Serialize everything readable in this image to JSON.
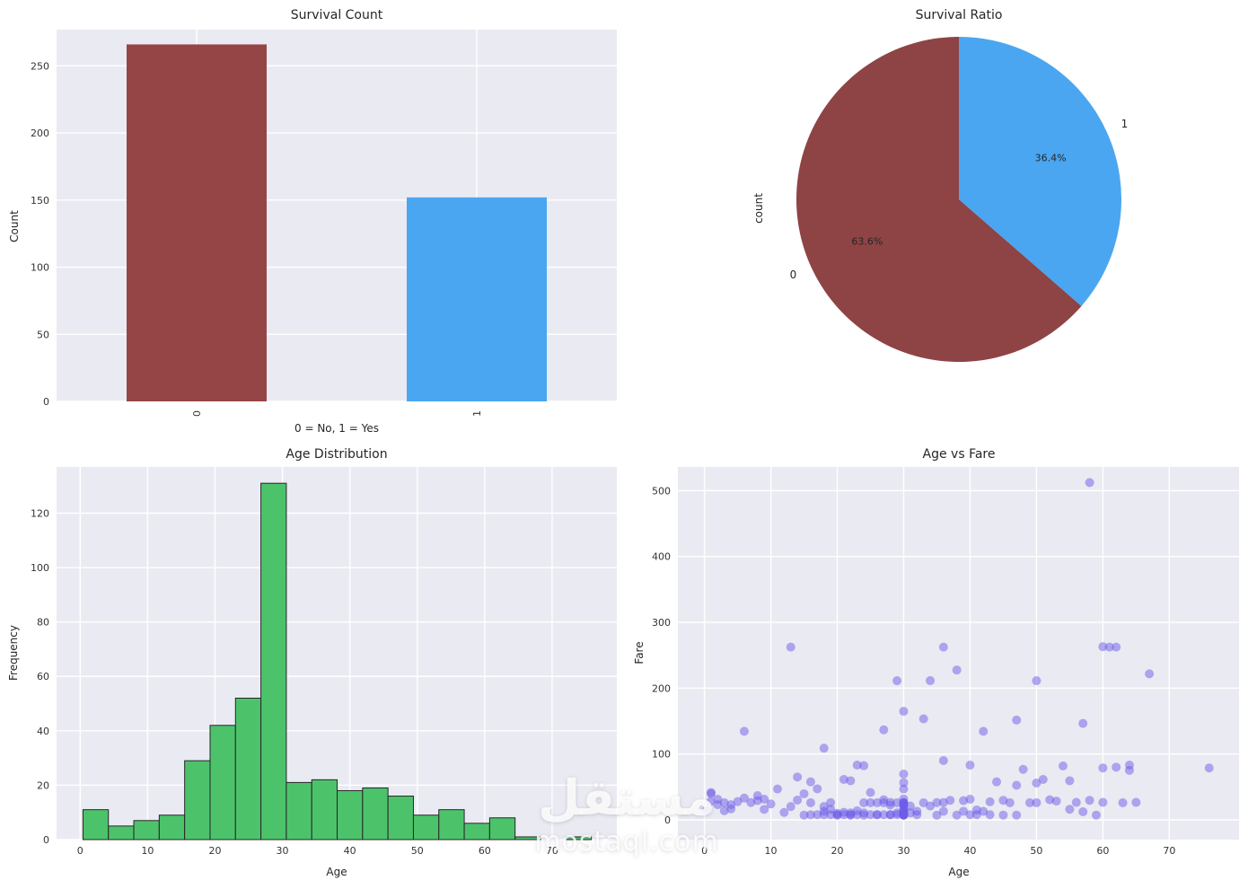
{
  "watermark": {
    "arabic": "مستقل",
    "domain": "mostaql.com"
  },
  "chart_data": [
    {
      "id": "survival_count",
      "type": "bar",
      "title": "Survival Count",
      "xlabel": "0 = No, 1 = Yes",
      "ylabel": "Count",
      "categories": [
        "0",
        "1"
      ],
      "values": [
        266,
        152
      ],
      "bar_colors": [
        "#964547",
        "#4aa6f0"
      ],
      "ylim": [
        0,
        277
      ],
      "yticks": [
        0,
        50,
        100,
        150,
        200,
        250
      ],
      "panel_background": "#eaeaf2",
      "grid_color": "#ffffff"
    },
    {
      "id": "survival_ratio",
      "type": "pie",
      "title": "Survival Ratio",
      "ylabel": "count",
      "labels": [
        "0",
        "1"
      ],
      "values": [
        63.6,
        36.4
      ],
      "pct_labels": [
        "63.6%",
        "36.4%"
      ],
      "colors": [
        "#8e4345",
        "#4aa6f0"
      ],
      "start_angle": 90,
      "direction": "counterclockwise"
    },
    {
      "id": "age_distribution",
      "type": "histogram",
      "title": "Age Distribution",
      "xlabel": "Age",
      "ylabel": "Frequency",
      "bin_start": 0.42,
      "bin_width": 3.77,
      "counts": [
        11,
        5,
        7,
        9,
        29,
        42,
        52,
        131,
        21,
        22,
        18,
        19,
        16,
        9,
        11,
        6,
        8,
        1,
        0,
        1
      ],
      "bar_color": "#4cc36b",
      "edge_color": "#262626",
      "xticks": [
        0,
        10,
        20,
        30,
        40,
        50,
        60,
        70
      ],
      "yticks": [
        0,
        20,
        40,
        60,
        80,
        100,
        120
      ],
      "xlim": [
        -3.5,
        79.6
      ],
      "ylim": [
        0,
        137
      ],
      "panel_background": "#eaeaf2",
      "grid_color": "#ffffff"
    },
    {
      "id": "age_vs_fare",
      "type": "scatter",
      "title": "Age vs Fare",
      "xlabel": "Age",
      "ylabel": "Fare",
      "point_color": "#6c5ce7",
      "point_opacity": 0.5,
      "xticks": [
        0,
        10,
        20,
        30,
        40,
        50,
        60,
        70
      ],
      "yticks": [
        0,
        100,
        200,
        300,
        400,
        500
      ],
      "xlim": [
        -4,
        80.5
      ],
      "ylim": [
        -30,
        536
      ],
      "panel_background": "#eaeaf2",
      "grid_color": "#ffffff",
      "points": [
        [
          0.33,
          14.4
        ],
        [
          0.92,
          27.75
        ],
        [
          1,
          39.69
        ],
        [
          1,
          41.58
        ],
        [
          2,
          23.0
        ],
        [
          2,
          31.27
        ],
        [
          3,
          26.0
        ],
        [
          3,
          13.78
        ],
        [
          4,
          16.7
        ],
        [
          4,
          23.0
        ],
        [
          5,
          27.75
        ],
        [
          6,
          134.5
        ],
        [
          6,
          33.0
        ],
        [
          7,
          26.25
        ],
        [
          8,
          36.75
        ],
        [
          8,
          29.13
        ],
        [
          9,
          31.39
        ],
        [
          9,
          15.9
        ],
        [
          10,
          24.15
        ],
        [
          11,
          46.9
        ],
        [
          12,
          11.24
        ],
        [
          13,
          262.38
        ],
        [
          13,
          20.25
        ],
        [
          14,
          30.07
        ],
        [
          14,
          65.0
        ],
        [
          15,
          39.63
        ],
        [
          15,
          7.23
        ],
        [
          16,
          26.0
        ],
        [
          16,
          7.75
        ],
        [
          16,
          57.75
        ],
        [
          17,
          7.9
        ],
        [
          17,
          47.1
        ],
        [
          18,
          108.9
        ],
        [
          18,
          13.0
        ],
        [
          18,
          7.78
        ],
        [
          18,
          20.21
        ],
        [
          19,
          7.85
        ],
        [
          19,
          26.28
        ],
        [
          19,
          16.1
        ],
        [
          20,
          7.23
        ],
        [
          20,
          9.85
        ],
        [
          20,
          7.93
        ],
        [
          21,
          7.8
        ],
        [
          21,
          61.38
        ],
        [
          21,
          11.5
        ],
        [
          22,
          7.25
        ],
        [
          22,
          59.4
        ],
        [
          22,
          7.9
        ],
        [
          22,
          10.5
        ],
        [
          23,
          13.79
        ],
        [
          23,
          83.16
        ],
        [
          23,
          7.85
        ],
        [
          24,
          7.05
        ],
        [
          24,
          82.27
        ],
        [
          24,
          26.0
        ],
        [
          24,
          10.5
        ],
        [
          25,
          7.9
        ],
        [
          25,
          26.0
        ],
        [
          25,
          41.58
        ],
        [
          26,
          7.85
        ],
        [
          26,
          26.0
        ],
        [
          26,
          7.9
        ],
        [
          27,
          136.78
        ],
        [
          27,
          26.0
        ],
        [
          27,
          7.88
        ],
        [
          27,
          30.5
        ],
        [
          28,
          7.78
        ],
        [
          28,
          26.55
        ],
        [
          28,
          22.53
        ],
        [
          28,
          7.9
        ],
        [
          29,
          211.34
        ],
        [
          29,
          7.93
        ],
        [
          29,
          26.0
        ],
        [
          29,
          10.5
        ],
        [
          30,
          164.87
        ],
        [
          30,
          7.75
        ],
        [
          30,
          26.0
        ],
        [
          30,
          12.35
        ],
        [
          30,
          7.63
        ],
        [
          30,
          21.0
        ],
        [
          30,
          8.66
        ],
        [
          30,
          13.0
        ],
        [
          30,
          7.9
        ],
        [
          30,
          26.25
        ],
        [
          30,
          15.58
        ],
        [
          30,
          23.45
        ],
        [
          30,
          31.68
        ],
        [
          30,
          7.23
        ],
        [
          30,
          14.46
        ],
        [
          30,
          8.05
        ],
        [
          30,
          56.5
        ],
        [
          30,
          69.55
        ],
        [
          30,
          46.9
        ],
        [
          30,
          25.7
        ],
        [
          30,
          22.36
        ],
        [
          30,
          7.25
        ],
        [
          31,
          10.5
        ],
        [
          31,
          21.0
        ],
        [
          32,
          13.0
        ],
        [
          32,
          7.93
        ],
        [
          33,
          26.0
        ],
        [
          33,
          153.46
        ],
        [
          34,
          21.0
        ],
        [
          34,
          211.5
        ],
        [
          35,
          26.29
        ],
        [
          35,
          7.05
        ],
        [
          36,
          262.38
        ],
        [
          36,
          26.39
        ],
        [
          36,
          90.0
        ],
        [
          36,
          13.0
        ],
        [
          37,
          29.7
        ],
        [
          38,
          227.53
        ],
        [
          38,
          7.23
        ],
        [
          39,
          29.13
        ],
        [
          39,
          13.0
        ],
        [
          40,
          31.32
        ],
        [
          40,
          7.9
        ],
        [
          40,
          83.16
        ],
        [
          41,
          7.85
        ],
        [
          41,
          15.05
        ],
        [
          42,
          134.5
        ],
        [
          42,
          13.0
        ],
        [
          43,
          7.9
        ],
        [
          43,
          27.44
        ],
        [
          44,
          57.75
        ],
        [
          45,
          29.7
        ],
        [
          45,
          7.23
        ],
        [
          46,
          26.0
        ],
        [
          47,
          151.55
        ],
        [
          47,
          7.25
        ],
        [
          47,
          52.55
        ],
        [
          48,
          76.73
        ],
        [
          49,
          26.0
        ],
        [
          50,
          211.34
        ],
        [
          50,
          26.0
        ],
        [
          50,
          55.9
        ],
        [
          51,
          61.38
        ],
        [
          52,
          30.5
        ],
        [
          53,
          28.5
        ],
        [
          54,
          81.86
        ],
        [
          55,
          59.4
        ],
        [
          55,
          16.0
        ],
        [
          56,
          26.55
        ],
        [
          57,
          146.52
        ],
        [
          57,
          12.35
        ],
        [
          58,
          512.33
        ],
        [
          58,
          29.7
        ],
        [
          59,
          7.25
        ],
        [
          60,
          26.55
        ],
        [
          60,
          263.0
        ],
        [
          60,
          78.85
        ],
        [
          61,
          262.38
        ],
        [
          62,
          262.38
        ],
        [
          62,
          80.0
        ],
        [
          63,
          26.0
        ],
        [
          64,
          75.25
        ],
        [
          64,
          83.16
        ],
        [
          65,
          26.55
        ],
        [
          67,
          221.78
        ],
        [
          76,
          78.85
        ]
      ]
    }
  ]
}
